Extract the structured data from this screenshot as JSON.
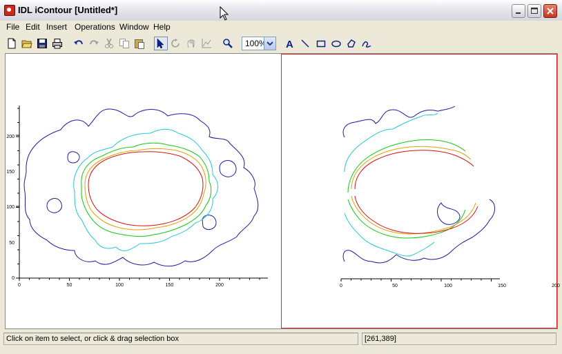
{
  "window": {
    "title": "IDL iContour [Untitled*]"
  },
  "menu": [
    "File",
    "Edit",
    "Insert",
    "Operations",
    "Window",
    "Help"
  ],
  "toolbar": {
    "zoom_value": "100%",
    "icons": [
      "new-file-icon",
      "open-folder-icon",
      "save-icon",
      "print-icon",
      "undo-icon",
      "redo-icon",
      "cut-icon",
      "copy-icon",
      "paste-icon",
      "select-arrow-icon",
      "rotate-icon",
      "pan-hand-icon",
      "data-range-icon",
      "zoom-magnifier-icon",
      "text-tool-icon",
      "line-tool-icon",
      "rectangle-tool-icon",
      "oval-tool-icon",
      "polygon-tool-icon",
      "freehand-tool-icon"
    ]
  },
  "plots": {
    "left": {
      "x_ticks": [
        "0",
        "50",
        "100",
        "150",
        "200"
      ],
      "y_ticks": [
        "0",
        "50",
        "100",
        "150",
        "200"
      ]
    },
    "right": {
      "x_ticks": [
        "0",
        "50",
        "100",
        "150",
        "200"
      ]
    },
    "contour_colors": [
      "#1a1aa0",
      "#20c8d8",
      "#10c810",
      "#e0a000",
      "#d81010"
    ]
  },
  "status": {
    "message": "Click on item to select, or click & drag selection box",
    "coordinates": "[261,389]"
  }
}
